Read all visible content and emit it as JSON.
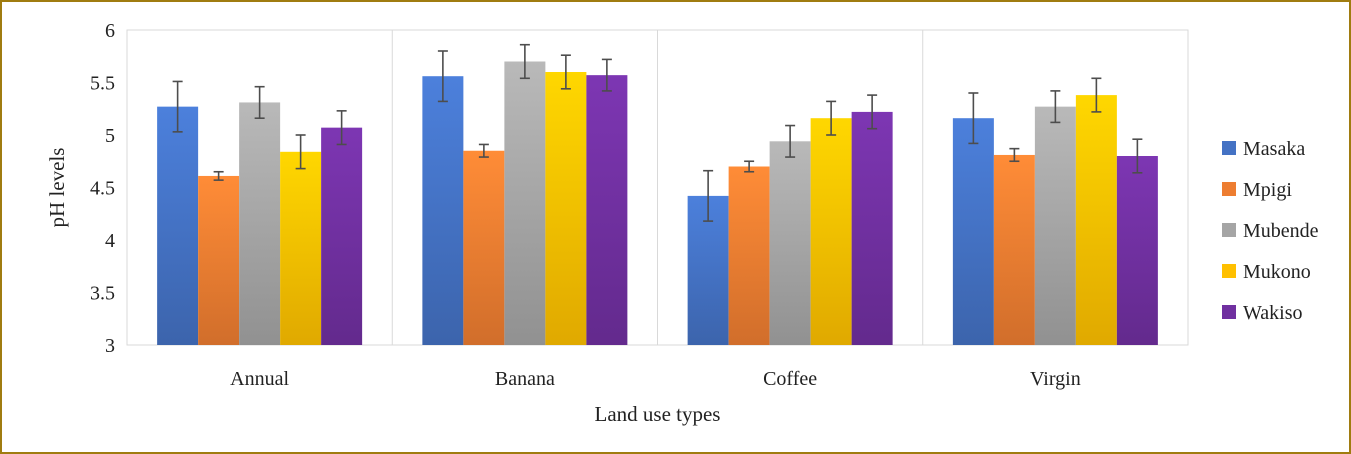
{
  "chart_data": {
    "type": "bar",
    "title": "",
    "xlabel": "Land use types",
    "ylabel": "pH levels",
    "ylim": [
      3,
      6
    ],
    "yticks": [
      "3",
      "3.5",
      "4",
      "4.5",
      "5",
      "5.5",
      "6"
    ],
    "categories": [
      "Annual",
      "Banana",
      "Coffee",
      "Virgin"
    ],
    "grid": "vertical category separators",
    "legend_position": "right",
    "series": [
      {
        "name": "Masaka",
        "color": "#4472c4",
        "values": [
          5.27,
          5.56,
          4.42,
          5.16
        ],
        "errors": [
          0.24,
          0.24,
          0.24,
          0.24
        ]
      },
      {
        "name": "Mpigi",
        "color": "#ed7d31",
        "values": [
          4.61,
          4.85,
          4.7,
          4.81
        ],
        "errors": [
          0.04,
          0.06,
          0.05,
          0.06
        ]
      },
      {
        "name": "Mubende",
        "color": "#a5a5a5",
        "values": [
          5.31,
          5.7,
          4.94,
          5.27
        ],
        "errors": [
          0.15,
          0.16,
          0.15,
          0.15
        ]
      },
      {
        "name": "Mukono",
        "color": "#ffc000",
        "values": [
          4.84,
          5.6,
          5.16,
          5.38
        ],
        "errors": [
          0.16,
          0.16,
          0.16,
          0.16
        ]
      },
      {
        "name": "Wakiso",
        "color": "#7030a0",
        "values": [
          5.07,
          5.57,
          5.22,
          4.8
        ],
        "errors": [
          0.16,
          0.15,
          0.16,
          0.16
        ]
      }
    ]
  }
}
